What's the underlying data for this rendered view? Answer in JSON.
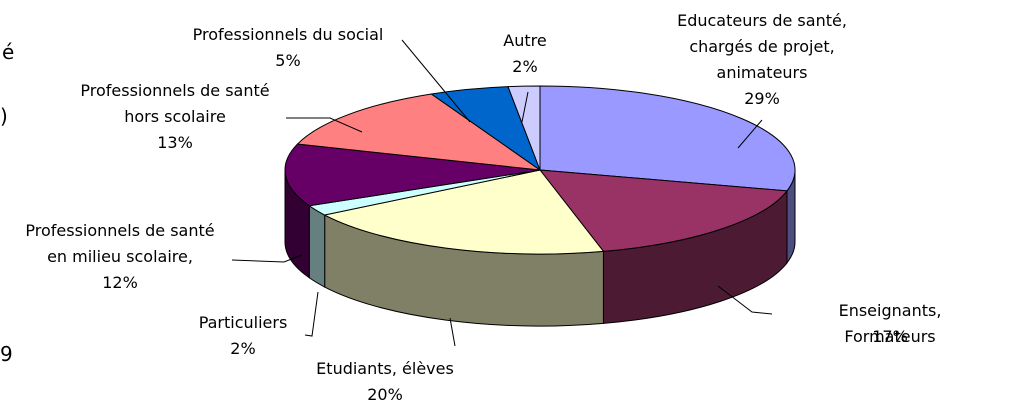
{
  "chart_data": {
    "type": "pie3d",
    "categories": [
      "Educateurs de santé,\nchargés de projet,\nanimateurs",
      "Enseignants, Formateurs",
      "Etudiants, élèves",
      "Particuliers",
      "Professionnels de santé\nen milieu scolaire,",
      "Professionnels de santé\nhors scolaire",
      "Professionnels du social",
      "Autre"
    ],
    "values": [
      29,
      17,
      20,
      2,
      12,
      13,
      5,
      2
    ],
    "value_labels": [
      "29%",
      "17%",
      "20%",
      "2%",
      "12%",
      "13%",
      "5%",
      "2%"
    ],
    "colors": [
      "#9999ff",
      "#993366",
      "#ffffcc",
      "#ccffff",
      "#660066",
      "#ff8080",
      "#0066cc",
      "#ccccff"
    ]
  },
  "side_text": [
    "é",
    ")",
    "9"
  ]
}
